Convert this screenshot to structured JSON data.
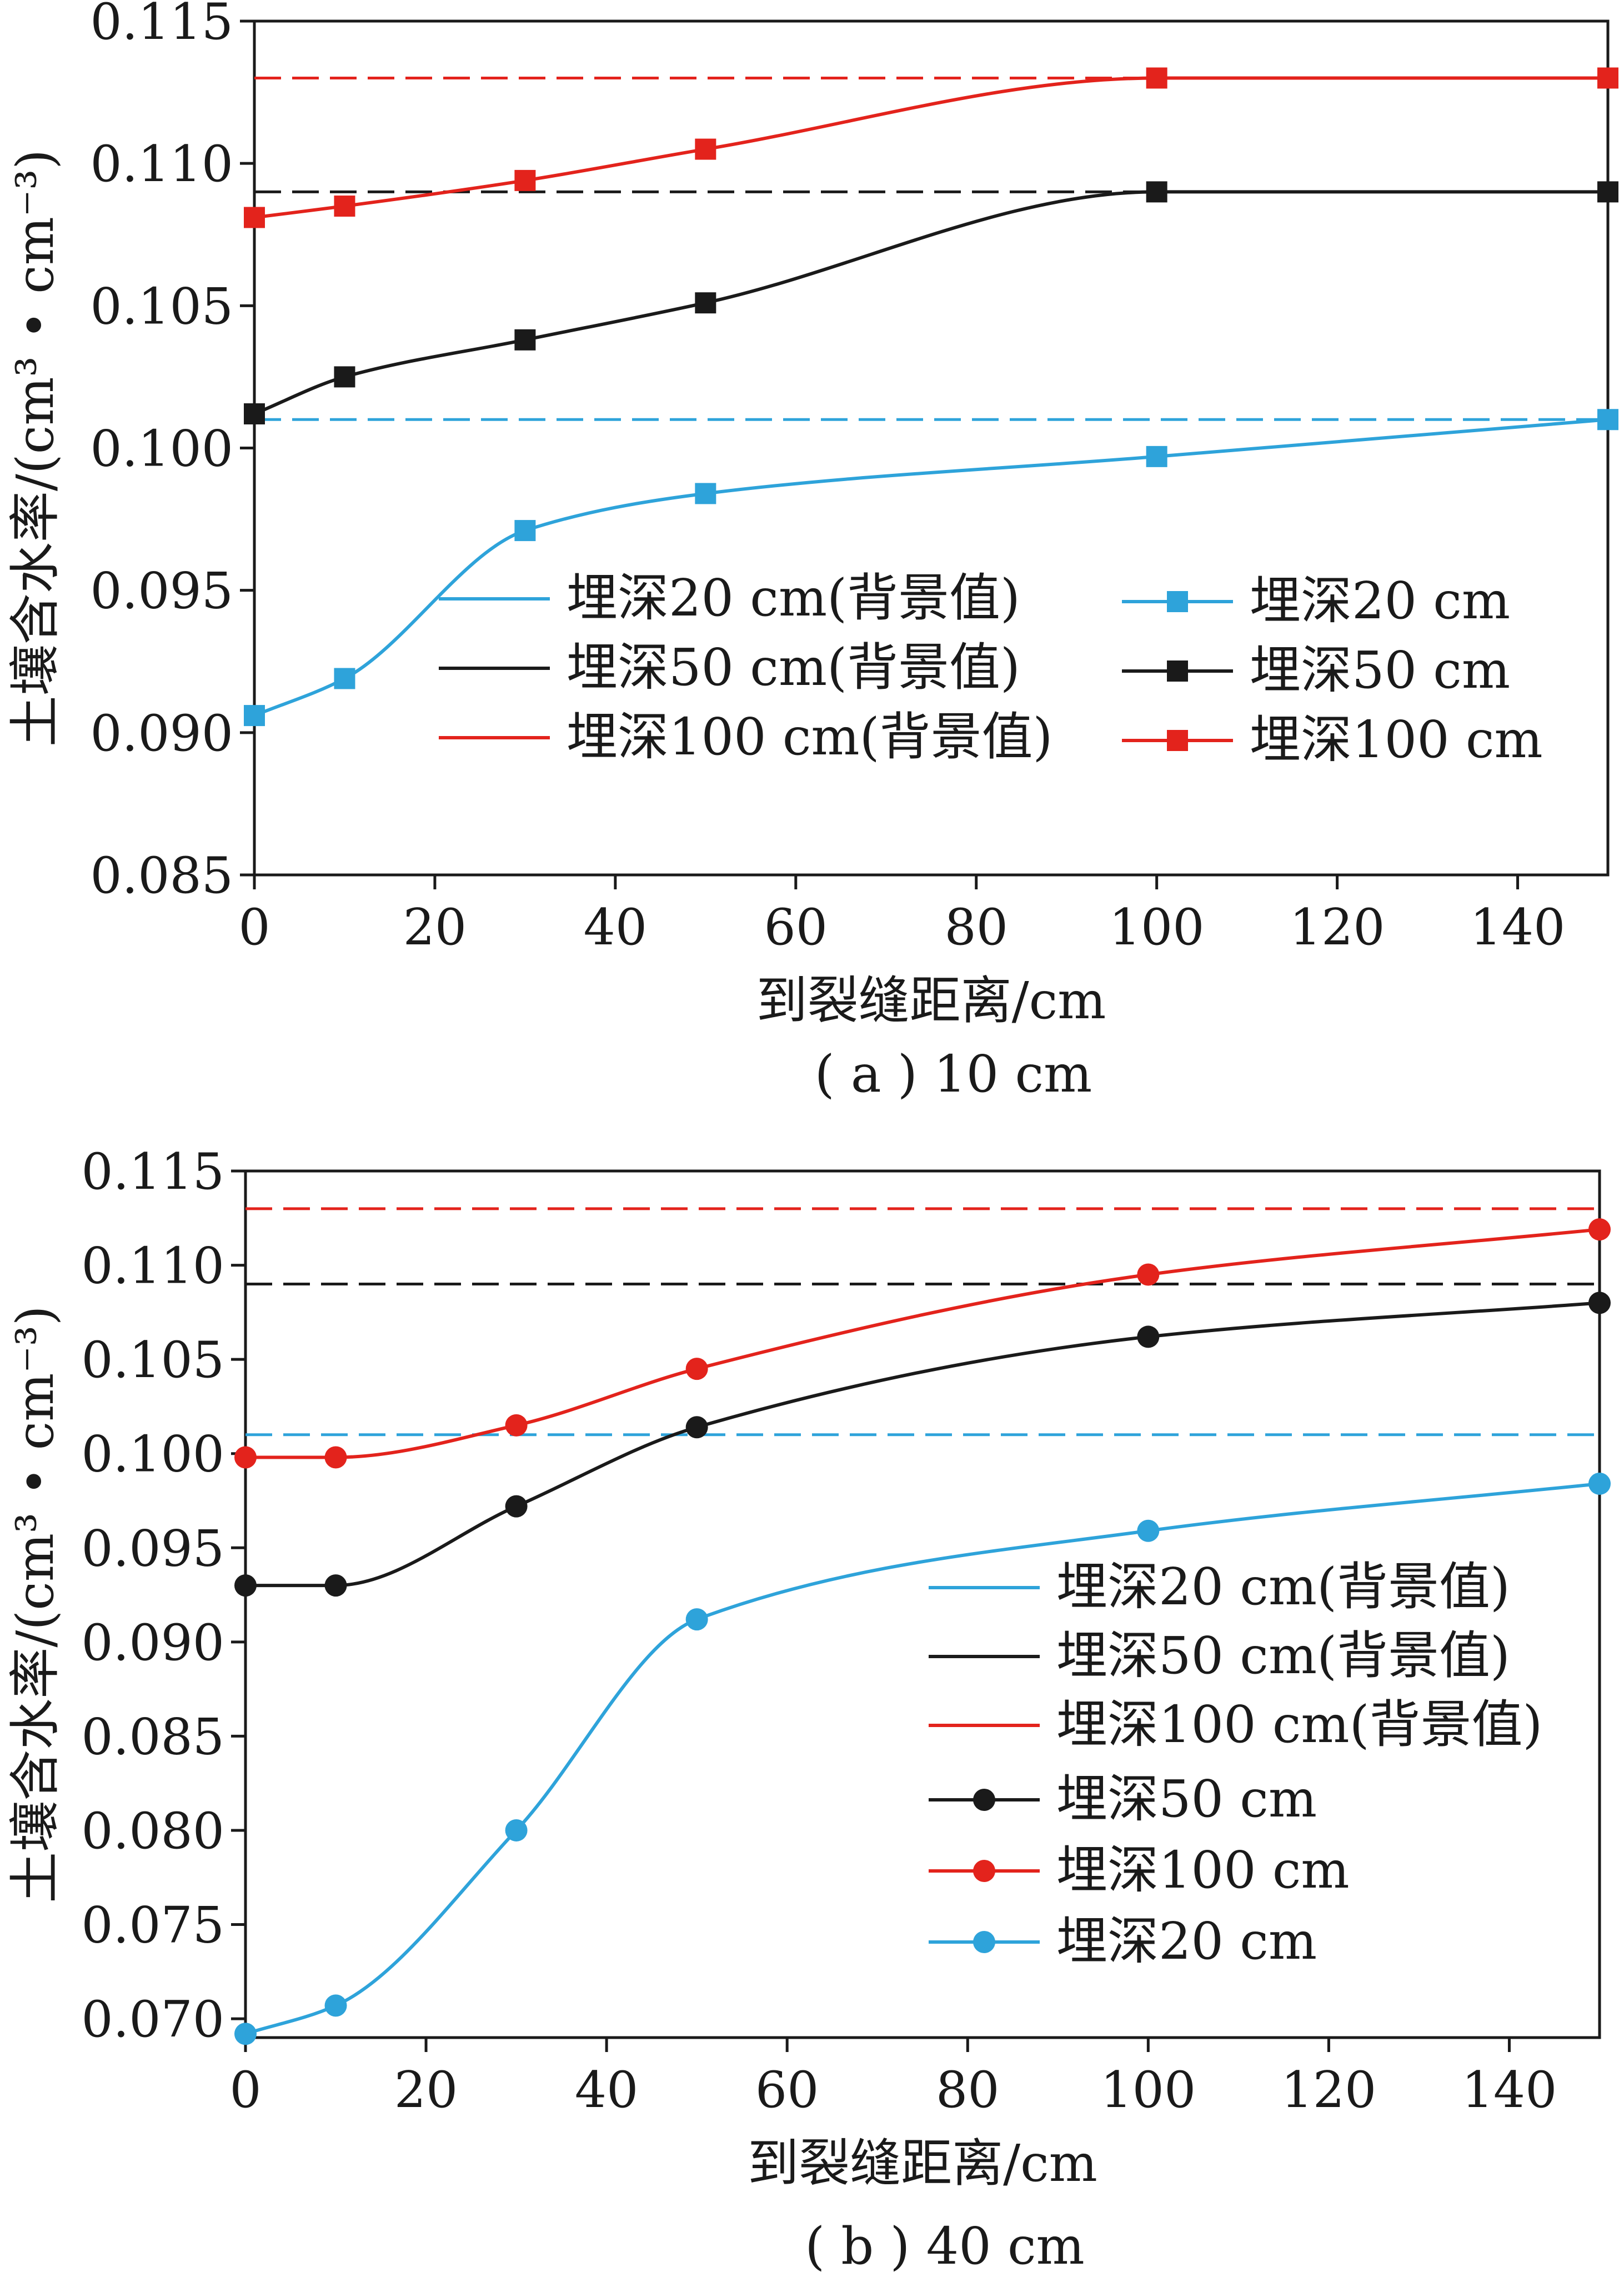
{
  "chart_data": [
    {
      "type": "line",
      "caption": "( a ) 10 cm",
      "xlabel": "到裂缝距离/cm",
      "ylabel": "土壤含水率/(cm³ • cm⁻³)",
      "xlim": [
        0,
        150
      ],
      "ylim": [
        0.085,
        0.115
      ],
      "xticks": [
        0,
        20,
        40,
        60,
        80,
        100,
        120,
        140
      ],
      "yticks": [
        "0.085",
        "0.090",
        "0.095",
        "0.100",
        "0.105",
        "0.110",
        "0.115"
      ],
      "grid": false,
      "legend_position": "center-left, inside plot, two columns",
      "series": [
        {
          "name": "埋深20 cm(背景值)",
          "kind": "background",
          "color": "#2ea3da",
          "dashed": true,
          "x": [
            0,
            150
          ],
          "y": [
            0.101,
            0.101
          ]
        },
        {
          "name": "埋深50 cm(背景值)",
          "kind": "background",
          "color": "#1a1a1a",
          "dashed": true,
          "x": [
            0,
            150
          ],
          "y": [
            0.109,
            0.109
          ]
        },
        {
          "name": "埋深100 cm(背景值)",
          "kind": "background",
          "color": "#e3231c",
          "dashed": true,
          "x": [
            0,
            150
          ],
          "y": [
            0.113,
            0.113
          ]
        },
        {
          "name": "埋深20 cm",
          "kind": "measured",
          "marker": "square",
          "color": "#2ea3da",
          "x": [
            0,
            10,
            30,
            50,
            100,
            150
          ],
          "y": [
            0.0906,
            0.0919,
            0.0971,
            0.0984,
            0.0997,
            0.101
          ]
        },
        {
          "name": "埋深50 cm",
          "kind": "measured",
          "marker": "square",
          "color": "#1a1a1a",
          "x": [
            0,
            10,
            30,
            50,
            100,
            150
          ],
          "y": [
            0.1012,
            0.1025,
            0.1038,
            0.1051,
            0.109,
            0.109
          ]
        },
        {
          "name": "埋深100 cm",
          "kind": "measured",
          "marker": "square",
          "color": "#e3231c",
          "x": [
            0,
            10,
            30,
            50,
            100,
            150
          ],
          "y": [
            0.1081,
            0.1085,
            0.1094,
            0.1105,
            0.113,
            0.113
          ]
        }
      ]
    },
    {
      "type": "line",
      "caption": "( b ) 40 cm",
      "xlabel": "到裂缝距离/cm",
      "ylabel": "土壤含水率/(cm³ • cm⁻³)",
      "xlim": [
        0,
        150
      ],
      "ylim": [
        0.069,
        0.115
      ],
      "xticks": [
        0,
        20,
        40,
        60,
        80,
        100,
        120,
        140
      ],
      "yticks": [
        "0.070",
        "0.075",
        "0.080",
        "0.085",
        "0.090",
        "0.095",
        "0.100",
        "0.105",
        "0.110",
        "0.115"
      ],
      "grid": false,
      "legend_position": "lower-right, inside plot, one column",
      "series": [
        {
          "name": "埋深20 cm(背景值)",
          "kind": "background",
          "color": "#2ea3da",
          "dashed": true,
          "x": [
            0,
            150
          ],
          "y": [
            0.101,
            0.101
          ]
        },
        {
          "name": "埋深50 cm(背景值)",
          "kind": "background",
          "color": "#1a1a1a",
          "dashed": true,
          "x": [
            0,
            150
          ],
          "y": [
            0.109,
            0.109
          ]
        },
        {
          "name": "埋深100 cm(背景值)",
          "kind": "background",
          "color": "#e3231c",
          "dashed": true,
          "x": [
            0,
            150
          ],
          "y": [
            0.113,
            0.113
          ]
        },
        {
          "name": "埋深50 cm",
          "kind": "measured",
          "marker": "circle",
          "color": "#1a1a1a",
          "x": [
            0,
            10,
            30,
            50,
            100,
            150
          ],
          "y": [
            0.093,
            0.093,
            0.0972,
            0.1014,
            0.1062,
            0.108
          ]
        },
        {
          "name": "埋深100 cm",
          "kind": "measured",
          "marker": "circle",
          "color": "#e3231c",
          "x": [
            0,
            10,
            30,
            50,
            100,
            150
          ],
          "y": [
            0.0998,
            0.0998,
            0.1015,
            0.1045,
            0.1095,
            0.1119
          ]
        },
        {
          "name": "埋深20 cm",
          "kind": "measured",
          "marker": "circle",
          "color": "#2ea3da",
          "x": [
            0,
            10,
            30,
            50,
            100,
            150
          ],
          "y": [
            0.0692,
            0.0707,
            0.08,
            0.0912,
            0.0959,
            0.0984
          ]
        }
      ]
    }
  ]
}
